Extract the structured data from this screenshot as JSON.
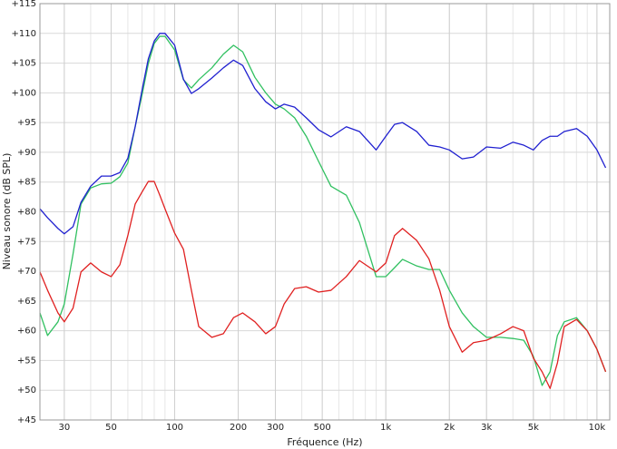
{
  "chart_data": {
    "type": "line",
    "x_label": "Fréquence (Hz)",
    "y_label": "Niveau sonore (dB SPL)",
    "xscale": "log",
    "grid": true,
    "minor_grid": true,
    "xlim": [
      23,
      11500
    ],
    "ylim": [
      45,
      115
    ],
    "xticks": [
      30,
      50,
      100,
      200,
      300,
      500,
      {
        "value": 1000,
        "label": "1k"
      },
      {
        "value": 2000,
        "label": "2k"
      },
      {
        "value": 3000,
        "label": "3k"
      },
      {
        "value": 5000,
        "label": "5k"
      },
      {
        "value": 10000,
        "label": "10k"
      }
    ],
    "yticks": [
      {
        "value": 45,
        "label": "+45"
      },
      {
        "value": 50,
        "label": "+50"
      },
      {
        "value": 55,
        "label": "+55"
      },
      {
        "value": 60,
        "label": "+60"
      },
      {
        "value": 65,
        "label": "+65"
      },
      {
        "value": 70,
        "label": "+70"
      },
      {
        "value": 75,
        "label": "+75"
      },
      {
        "value": 80,
        "label": "+80"
      },
      {
        "value": 85,
        "label": "+85"
      },
      {
        "value": 90,
        "label": "+90"
      },
      {
        "value": 95,
        "label": "+95"
      },
      {
        "value": 100,
        "label": "+100"
      },
      {
        "value": 105,
        "label": "+105"
      },
      {
        "value": 110,
        "label": "+110"
      },
      {
        "value": 115,
        "label": "+115"
      }
    ],
    "x": [
      23,
      25,
      28,
      30,
      33,
      36,
      40,
      45,
      50,
      55,
      60,
      65,
      70,
      75,
      80,
      85,
      90,
      100,
      110,
      120,
      130,
      150,
      170,
      190,
      210,
      240,
      270,
      300,
      330,
      370,
      420,
      480,
      550,
      650,
      750,
      900,
      1000,
      1100,
      1200,
      1400,
      1600,
      1800,
      2000,
      2300,
      2600,
      3000,
      3500,
      4000,
      4500,
      5000,
      5500,
      6000,
      6500,
      7000,
      8000,
      9000,
      10000,
      11000
    ],
    "series": [
      {
        "color": "#30c060",
        "values": [
          63,
          59.2,
          61.5,
          64.5,
          72.9,
          81.3,
          84,
          84.7,
          84.8,
          85.9,
          88.2,
          94.3,
          99.6,
          104.9,
          108.3,
          109.5,
          109.5,
          107.2,
          102.2,
          100.8,
          102.2,
          104.2,
          106.5,
          108,
          106.9,
          102.6,
          100,
          98.1,
          97.3,
          95.8,
          92.7,
          88.5,
          84.3,
          82.8,
          78.2,
          69.1,
          69.1,
          70.6,
          72,
          70.9,
          70.3,
          70.3,
          66.8,
          63,
          60.7,
          58.9,
          58.9,
          58.7,
          58.4,
          55.7,
          50.8,
          53.1,
          59.2,
          61.5,
          62.2,
          60,
          56.9,
          53.1
        ]
      },
      {
        "color": "#e02020",
        "values": [
          69.9,
          66.8,
          63,
          61.5,
          63.8,
          69.9,
          71.4,
          69.9,
          69.1,
          71.1,
          76,
          81.3,
          83.3,
          85.1,
          85.1,
          82.8,
          80.5,
          76.4,
          73.7,
          66.8,
          60.7,
          58.9,
          59.5,
          62.2,
          63,
          61.5,
          59.5,
          60.7,
          64.5,
          67.1,
          67.4,
          66.5,
          66.8,
          69.1,
          71.8,
          69.9,
          71.4,
          76,
          77.2,
          75.2,
          72.1,
          66.8,
          60.7,
          56.4,
          58,
          58.4,
          59.5,
          60.7,
          60,
          55.4,
          53.1,
          50.3,
          54.6,
          60.7,
          61.9,
          60,
          56.9,
          53.1
        ]
      },
      {
        "color": "#2020d0",
        "values": [
          80.5,
          79,
          77.2,
          76.3,
          77.5,
          81.6,
          84.3,
          86,
          86,
          86.6,
          89,
          94.3,
          100.4,
          105.7,
          108.7,
          110,
          110,
          108,
          102.3,
          99.9,
          100.7,
          102.5,
          104.2,
          105.5,
          104.6,
          100.7,
          98.5,
          97.3,
          98.1,
          97.6,
          95.8,
          93.8,
          92.6,
          94.3,
          93.5,
          90.4,
          92.7,
          94.7,
          95,
          93.5,
          91.2,
          90.9,
          90.4,
          88.9,
          89.2,
          90.9,
          90.7,
          91.7,
          91.2,
          90.4,
          92,
          92.7,
          92.7,
          93.5,
          94,
          92.7,
          90.4,
          87.4
        ]
      }
    ]
  }
}
